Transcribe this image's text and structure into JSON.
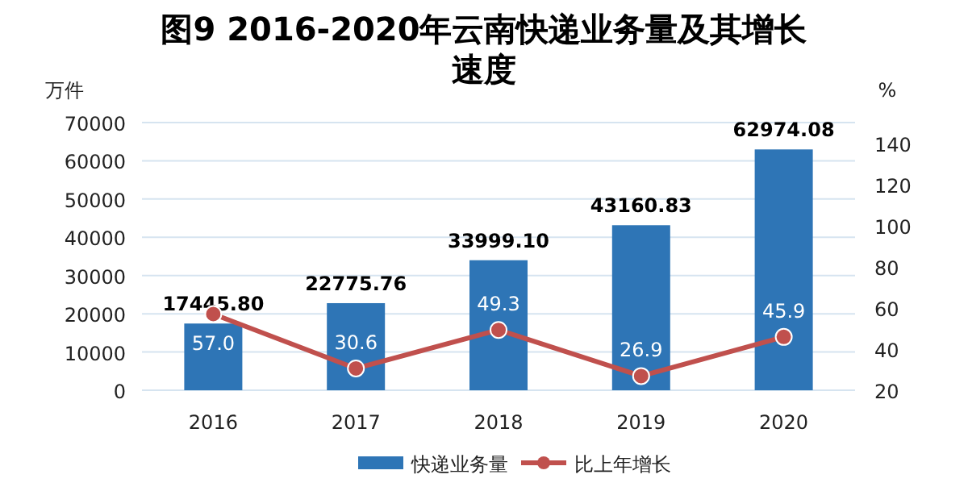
{
  "chart_data": {
    "type": "bar",
    "title": "图9  2016-2020年云南快递业务量及其增长速度",
    "ylabel": "万件",
    "y2label": "%",
    "categories": [
      "2016",
      "2017",
      "2018",
      "2019",
      "2020"
    ],
    "series": [
      {
        "name": "快递业务量",
        "color": "#2e75b6",
        "values": [
          17445.8,
          22775.76,
          33999.1,
          43160.83,
          62974.08
        ],
        "value_labels": [
          "17445.80",
          "22775.76",
          "33999.10",
          "43160.83",
          "62974.08"
        ]
      },
      {
        "name": "比上年增长",
        "type": "line",
        "axis": "y2",
        "color": "#c0504d",
        "marker": "circle",
        "values": [
          57.0,
          30.6,
          49.3,
          26.9,
          45.9
        ],
        "value_labels": [
          "57.0",
          "30.6",
          "49.3",
          "26.9",
          "45.9"
        ]
      }
    ],
    "ylim": [
      0,
      70000
    ],
    "yticks": [
      0,
      10000,
      20000,
      30000,
      40000,
      50000,
      60000,
      70000
    ],
    "y2lim": [
      20,
      150
    ],
    "y2ticks": [
      20,
      40,
      60,
      80,
      100,
      120,
      140
    ],
    "grid": "y",
    "legend": "bottom"
  }
}
